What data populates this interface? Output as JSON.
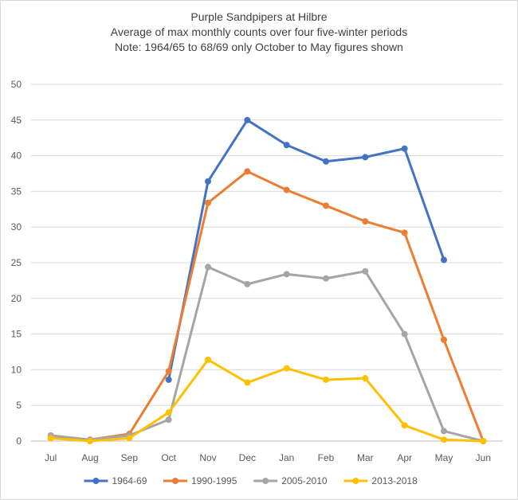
{
  "chart_data": {
    "type": "line",
    "title_lines": [
      "Purple Sandpipers at Hilbre",
      "Average of max monthly counts over four five-winter periods",
      "Note: 1964/65 to 68/69 only October to May figures shown"
    ],
    "xlabel": "",
    "ylabel": "",
    "categories": [
      "Jul",
      "Aug",
      "Sep",
      "Oct",
      "Nov",
      "Dec",
      "Jan",
      "Feb",
      "Mar",
      "Apr",
      "May",
      "Jun"
    ],
    "ylim": [
      0,
      50
    ],
    "yticks": [
      0,
      5,
      10,
      15,
      20,
      25,
      30,
      35,
      40,
      45,
      50
    ],
    "grid": true,
    "legend_position": "bottom",
    "series": [
      {
        "name": "1964-69",
        "color": "#4472C4",
        "values": [
          null,
          null,
          null,
          8.6,
          36.4,
          45.0,
          41.5,
          39.2,
          39.8,
          41.0,
          25.4,
          null
        ]
      },
      {
        "name": "1990-1995",
        "color": "#ED7D31",
        "values": [
          0.4,
          0.2,
          1.0,
          9.8,
          33.4,
          37.8,
          35.2,
          33.0,
          30.8,
          29.2,
          14.2,
          0.0
        ]
      },
      {
        "name": "2005-2010",
        "color": "#A5A5A5",
        "values": [
          0.8,
          0.2,
          0.8,
          3.0,
          24.4,
          22.0,
          23.4,
          22.8,
          23.8,
          15.0,
          1.4,
          0.0
        ]
      },
      {
        "name": "2013-2018",
        "color": "#FFC000",
        "values": [
          0.4,
          0.0,
          0.4,
          4.0,
          11.4,
          8.2,
          10.2,
          8.6,
          8.8,
          2.2,
          0.2,
          0.0
        ]
      }
    ]
  }
}
